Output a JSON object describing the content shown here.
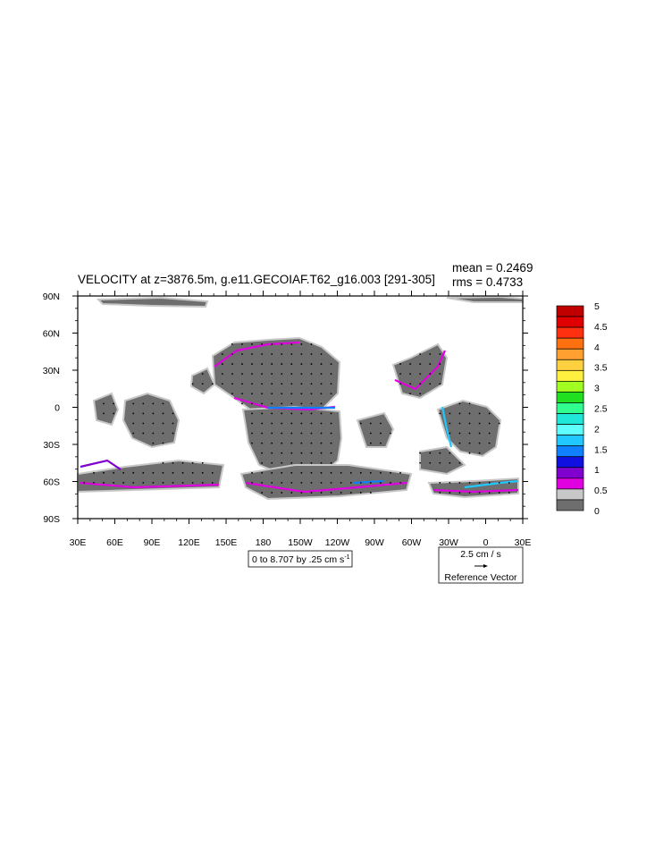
{
  "chart_data": {
    "type": "heatmap",
    "title": "VELOCITY at z=3876.5m, g.e11.GECOIAF.T62_g16.003 [291-305]",
    "stats": {
      "mean": "mean = 0.2469",
      "rms": "rms = 0.4733"
    },
    "x_ticks": [
      "30E",
      "60E",
      "90E",
      "120E",
      "150E",
      "180",
      "150W",
      "120W",
      "90W",
      "60W",
      "30W",
      "0",
      "30E"
    ],
    "x_values": [
      30,
      60,
      90,
      120,
      150,
      180,
      210,
      240,
      270,
      300,
      330,
      360,
      390
    ],
    "xlim": [
      30,
      390
    ],
    "y_ticks": [
      "90N",
      "60N",
      "30N",
      "0",
      "30S",
      "60S",
      "90S"
    ],
    "y_values": [
      90,
      60,
      30,
      0,
      -30,
      -60,
      -90
    ],
    "ylim": [
      -90,
      90
    ],
    "contour_info": "0 to 8.707 by .25 cm s",
    "contour_info_sup": "-1",
    "reference_vector": {
      "magnitude": "2.5 cm / s",
      "label": "Reference Vector"
    },
    "colorbar": {
      "levels": [
        "5",
        "4.5",
        "4",
        "3.5",
        "3",
        "2.5",
        "2",
        "1.5",
        "1",
        "0.5",
        "0"
      ],
      "colors": [
        "#c00000",
        "#e00000",
        "#ff3010",
        "#ff7010",
        "#ffa030",
        "#ffd040",
        "#fff040",
        "#a0ff20",
        "#20e020",
        "#30ff90",
        "#20e8d8",
        "#60ffff",
        "#20c8ff",
        "#1080ff",
        "#1010e0",
        "#8000d0",
        "#e000e0",
        "#c8c8c8",
        "#6e6e6e"
      ]
    }
  }
}
